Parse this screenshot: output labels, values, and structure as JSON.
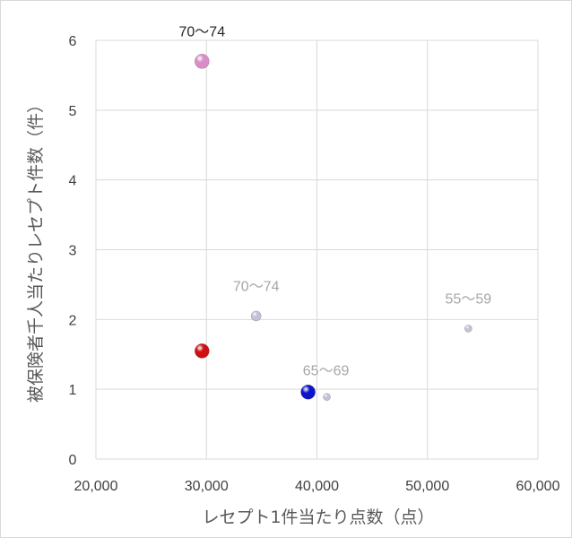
{
  "chart_data": {
    "type": "scatter",
    "xlabel": "レセプト1件当たり点数（点）",
    "ylabel": "被保険者千人当たりレセプト件数（件）",
    "xlim": [
      20000,
      60000
    ],
    "ylim": [
      0,
      6
    ],
    "x_ticks": [
      "20,000",
      "30,000",
      "40,000",
      "50,000",
      "60,000"
    ],
    "y_ticks": [
      "0",
      "1",
      "2",
      "3",
      "4",
      "5",
      "6"
    ],
    "grid": true,
    "points": [
      {
        "x": 29600,
        "y": 5.7,
        "label": "70～74",
        "color": "#d98cc6",
        "size": "large",
        "label_color": "#262626"
      },
      {
        "x": 34500,
        "y": 2.05,
        "label": "70～74",
        "color": "#c8bfd8",
        "size": "small",
        "label_color": "#a6a6a6"
      },
      {
        "x": 29600,
        "y": 1.55,
        "label": "",
        "color": "#d01010",
        "size": "large",
        "label_color": ""
      },
      {
        "x": 39200,
        "y": 0.96,
        "label": "",
        "color": "#0c16c8",
        "size": "large",
        "label_color": ""
      },
      {
        "x": 40900,
        "y": 0.89,
        "label": "65～69",
        "color": "#c8bfd8",
        "size": "tiny",
        "label_color": "#a6a6a6"
      },
      {
        "x": 53700,
        "y": 1.87,
        "label": "55～59",
        "color": "#c8bfd8",
        "size": "tiny",
        "label_color": "#a6a6a6"
      }
    ]
  }
}
